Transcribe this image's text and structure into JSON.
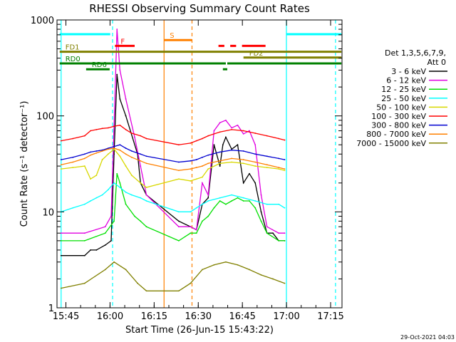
{
  "chart_data": {
    "type": "line",
    "title": "RHESSI Observing Summary Count Rates",
    "xlabel": "Start Time (26-Jun-15 15:43:22)",
    "ylabel": "Count Rate (s⁻¹ detector⁻¹)",
    "y_scale": "log",
    "ylim": [
      1,
      1000
    ],
    "xlim_minutes": [
      -1.4,
      95.5
    ],
    "x_ticks": [
      {
        "label": "15:45",
        "minutes": 1.63
      },
      {
        "label": "16:00",
        "minutes": 16.63
      },
      {
        "label": "16:15",
        "minutes": 31.63
      },
      {
        "label": "16:30",
        "minutes": 46.63
      },
      {
        "label": "16:45",
        "minutes": 61.63
      },
      {
        "label": "17:00",
        "minutes": 76.63
      },
      {
        "label": "17:15",
        "minutes": 91.63
      }
    ],
    "y_ticks": [
      {
        "label": "1",
        "value": 1
      },
      {
        "label": "10",
        "value": 10
      },
      {
        "label": "100",
        "value": 100
      },
      {
        "label": "1000",
        "value": 1000
      }
    ],
    "legend": {
      "placement": "right",
      "header": [
        "Det 1,3,5,6,7,9,",
        "Att 0"
      ]
    },
    "series": [
      {
        "name": "3 - 6 keV",
        "color": "#000000",
        "x": [
          0,
          8,
          10,
          12,
          15,
          17,
          18,
          19,
          20,
          22,
          26,
          27,
          29,
          40,
          44,
          46,
          48,
          50,
          52,
          54,
          55,
          56,
          58,
          60,
          62,
          64,
          66,
          68,
          70,
          72,
          74,
          76
        ],
        "y": [
          3.5,
          3.5,
          4,
          4,
          4.5,
          5,
          40,
          270,
          150,
          100,
          40,
          20,
          15,
          8,
          7,
          6.5,
          12,
          14,
          50,
          30,
          50,
          60,
          45,
          50,
          20,
          25,
          20,
          10,
          6,
          6,
          5,
          5
        ]
      },
      {
        "name": "6 - 12 keV",
        "color": "#e000e0",
        "x": [
          0,
          8,
          15,
          17,
          18,
          19,
          20,
          22,
          25,
          27,
          29,
          40,
          44,
          46,
          48,
          50,
          52,
          54,
          56,
          58,
          60,
          62,
          64,
          66,
          68,
          70,
          74,
          76
        ],
        "y": [
          6,
          6,
          7,
          9,
          80,
          800,
          300,
          150,
          60,
          30,
          15,
          7,
          7,
          6.5,
          20,
          15,
          70,
          85,
          90,
          75,
          80,
          65,
          70,
          50,
          15,
          7,
          6,
          6
        ]
      },
      {
        "name": "12 - 25 keV",
        "color": "#00e000",
        "x": [
          0,
          8,
          15,
          18,
          19,
          20,
          22,
          25,
          27,
          29,
          40,
          44,
          46,
          48,
          50,
          52,
          54,
          56,
          58,
          60,
          62,
          64,
          66,
          68,
          70,
          74,
          76
        ],
        "y": [
          5,
          5,
          6,
          8,
          25,
          20,
          12,
          9,
          8,
          7,
          5,
          6,
          6,
          8,
          9,
          11,
          13,
          12,
          13,
          14,
          13,
          13,
          11,
          8,
          6,
          5,
          5
        ]
      },
      {
        "name": "25 - 50 keV",
        "color": "#00ffff",
        "x": [
          0,
          4,
          8,
          10,
          12,
          14,
          16,
          18,
          20,
          22,
          24,
          27,
          29,
          40,
          44,
          46,
          48,
          50,
          54,
          58,
          62,
          66,
          70,
          74,
          76
        ],
        "y": [
          10,
          11,
          12,
          13,
          14,
          15,
          17,
          20,
          18,
          16,
          15,
          14,
          13,
          10,
          10,
          11,
          12,
          13,
          14,
          15,
          14,
          13,
          12,
          12,
          11
        ]
      },
      {
        "name": "50 - 100 keV",
        "color": "#d8d800",
        "x": [
          0,
          4,
          8,
          10,
          12,
          14,
          16,
          18,
          20,
          22,
          24,
          27,
          29,
          40,
          44,
          46,
          48,
          50,
          54,
          58,
          62,
          66,
          70,
          74,
          76
        ],
        "y": [
          28,
          29,
          30,
          22,
          24,
          35,
          40,
          45,
          38,
          30,
          24,
          20,
          18,
          22,
          21,
          22,
          23,
          28,
          32,
          33,
          32,
          30,
          29,
          28,
          27
        ]
      },
      {
        "name": "100 - 300 keV",
        "color": "#ff0000",
        "x": [
          0,
          4,
          8,
          10,
          12,
          14,
          16,
          18,
          20,
          22,
          24,
          27,
          29,
          40,
          44,
          46,
          48,
          50,
          54,
          58,
          62,
          66,
          70,
          74,
          76
        ],
        "y": [
          55,
          58,
          62,
          70,
          72,
          74,
          75,
          78,
          80,
          72,
          66,
          62,
          58,
          50,
          52,
          55,
          58,
          62,
          68,
          72,
          70,
          66,
          62,
          58,
          56
        ]
      },
      {
        "name": "300 - 800 keV",
        "color": "#0000d0",
        "x": [
          0,
          4,
          8,
          10,
          12,
          14,
          16,
          18,
          20,
          22,
          24,
          27,
          29,
          40,
          44,
          46,
          48,
          50,
          54,
          58,
          62,
          66,
          70,
          74,
          76
        ],
        "y": [
          35,
          37,
          40,
          42,
          43,
          44,
          46,
          48,
          50,
          46,
          43,
          40,
          38,
          33,
          34,
          35,
          37,
          39,
          42,
          44,
          43,
          40,
          38,
          36,
          35
        ]
      },
      {
        "name": "800 - 7000 keV",
        "color": "#ff8000",
        "x": [
          0,
          4,
          8,
          10,
          12,
          14,
          16,
          18,
          20,
          22,
          24,
          27,
          29,
          40,
          44,
          46,
          48,
          50,
          54,
          58,
          62,
          66,
          70,
          74,
          76
        ],
        "y": [
          31,
          33,
          36,
          39,
          41,
          43,
          45,
          46,
          44,
          40,
          37,
          34,
          32,
          27,
          28,
          29,
          30,
          32,
          34,
          36,
          35,
          33,
          31,
          29,
          28
        ]
      },
      {
        "name": "7000 - 15000 keV",
        "color": "#808000",
        "x": [
          0,
          8,
          15,
          18,
          22,
          26,
          29,
          40,
          44,
          48,
          52,
          56,
          60,
          64,
          68,
          72,
          76
        ],
        "y": [
          1.6,
          1.8,
          2.5,
          3,
          2.5,
          1.8,
          1.5,
          1.5,
          1.8,
          2.5,
          2.8,
          3,
          2.8,
          2.5,
          2.2,
          2,
          1.8
        ]
      }
    ],
    "vertical_markers": [
      {
        "minutes": 0.0,
        "color": "#00ffff",
        "style": "solid"
      },
      {
        "minutes": 17.5,
        "color": "#00ffff",
        "style": "dashed"
      },
      {
        "minutes": 35.0,
        "color": "#ff8000",
        "style": "solid"
      },
      {
        "minutes": 44.5,
        "color": "#ff8000",
        "style": "dashed"
      },
      {
        "minutes": 76.6,
        "color": "#00ffff",
        "style": "solid"
      },
      {
        "minutes": 93.3,
        "color": "#00ffff",
        "style": "dashed"
      }
    ],
    "flag_bars": [
      {
        "label": "",
        "color": "#00ffff",
        "level": 0,
        "segments": [
          [
            -0.5,
            16.7
          ],
          [
            76.6,
            95.3
          ]
        ]
      },
      {
        "label": "S",
        "color": "#ff8000",
        "level": 1,
        "segments": [
          [
            35.0,
            44.5
          ]
        ]
      },
      {
        "label": "F",
        "color": "#ff0000",
        "level": 2,
        "segments": [
          [
            18.3,
            25.0
          ],
          [
            53.5,
            55.5
          ],
          [
            57.5,
            59.5
          ],
          [
            61.5,
            69.5
          ]
        ]
      },
      {
        "label": "FD1",
        "color": "#808000",
        "level": 3,
        "segments": [
          [
            -0.5,
            95.3
          ]
        ]
      },
      {
        "label": "FD2",
        "color": "#808000",
        "level": 4,
        "segments": [
          [
            62.0,
            95.3
          ]
        ]
      },
      {
        "label": "RD0",
        "color": "#008000",
        "level": 5,
        "segments": [
          [
            -0.5,
            56.0
          ],
          [
            56.5,
            95.3
          ]
        ]
      },
      {
        "label": "RD6",
        "color": "#008000",
        "level": 6,
        "segments": [
          [
            8.5,
            16.5
          ],
          [
            55.0,
            56.5
          ]
        ]
      }
    ]
  },
  "timestamp": "29-Oct-2021 04:03"
}
